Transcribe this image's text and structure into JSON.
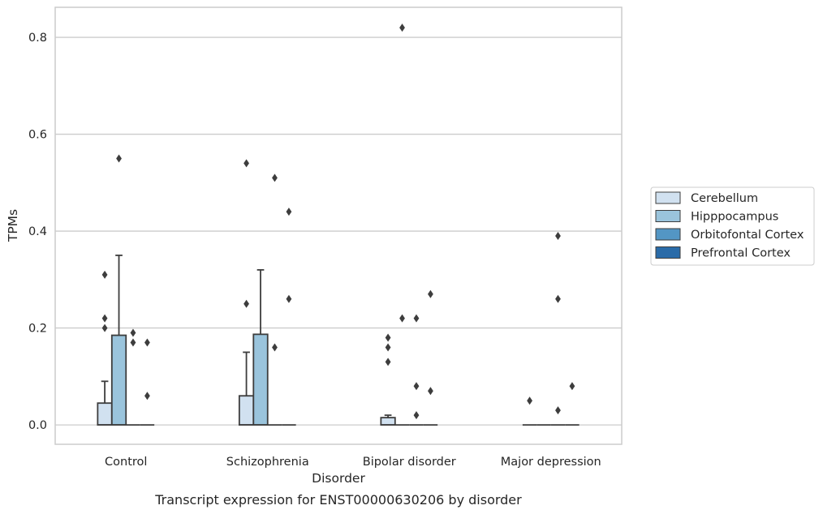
{
  "caption": "Transcript expression for ENST00000630206 by disorder",
  "chart_data": {
    "type": "box",
    "title": "",
    "xlabel": "Disorder",
    "ylabel": "TPMs",
    "ylim": [
      -0.04,
      0.862
    ],
    "yticks": [
      0.0,
      0.2,
      0.4,
      0.6,
      0.8
    ],
    "ytick_labels": [
      "0.0",
      "0.2",
      "0.4",
      "0.6",
      "0.8"
    ],
    "grid": "horizontal",
    "legend_position": "right",
    "categories": [
      "Control",
      "Schizophrenia",
      "Bipolar disorder",
      "Major depression"
    ],
    "series": [
      {
        "name": "Cerebellum",
        "color": "#d1e1f0",
        "boxes": [
          {
            "q1": 0.0,
            "median": 0.0,
            "q3": 0.045,
            "whisker_low": 0.0,
            "whisker_high": 0.09,
            "outliers": [
              0.2,
              0.22,
              0.31
            ]
          },
          {
            "q1": 0.0,
            "median": 0.0,
            "q3": 0.06,
            "whisker_low": 0.0,
            "whisker_high": 0.15,
            "outliers": [
              0.25,
              0.54
            ]
          },
          {
            "q1": 0.0,
            "median": 0.0,
            "q3": 0.015,
            "whisker_low": 0.0,
            "whisker_high": 0.02,
            "outliers": [
              0.13,
              0.16,
              0.18
            ]
          },
          {
            "q1": 0.0,
            "median": 0.0,
            "q3": 0.0,
            "whisker_low": 0.0,
            "whisker_high": 0.0,
            "outliers": [
              0.05
            ]
          }
        ]
      },
      {
        "name": "Hipppocampus",
        "color": "#9ac4dc",
        "boxes": [
          {
            "q1": 0.0,
            "median": 0.0,
            "q3": 0.185,
            "whisker_low": 0.0,
            "whisker_high": 0.35,
            "outliers": [
              0.55
            ]
          },
          {
            "q1": 0.0,
            "median": 0.0,
            "q3": 0.187,
            "whisker_low": 0.0,
            "whisker_high": 0.32,
            "outliers": []
          },
          {
            "q1": 0.0,
            "median": 0.0,
            "q3": 0.0,
            "whisker_low": 0.0,
            "whisker_high": 0.0,
            "outliers": [
              0.22,
              0.82
            ]
          },
          {
            "q1": 0.0,
            "median": 0.0,
            "q3": 0.0,
            "whisker_low": 0.0,
            "whisker_high": 0.0,
            "outliers": []
          }
        ]
      },
      {
        "name": "Orbitofontal Cortex",
        "color": "#5396c4",
        "boxes": [
          {
            "q1": 0.0,
            "median": 0.0,
            "q3": 0.0,
            "whisker_low": 0.0,
            "whisker_high": 0.0,
            "outliers": [
              0.17,
              0.19
            ]
          },
          {
            "q1": 0.0,
            "median": 0.0,
            "q3": 0.0,
            "whisker_low": 0.0,
            "whisker_high": 0.0,
            "outliers": [
              0.16,
              0.51
            ]
          },
          {
            "q1": 0.0,
            "median": 0.0,
            "q3": 0.0,
            "whisker_low": 0.0,
            "whisker_high": 0.0,
            "outliers": [
              0.02,
              0.08,
              0.22
            ]
          },
          {
            "q1": 0.0,
            "median": 0.0,
            "q3": 0.0,
            "whisker_low": 0.0,
            "whisker_high": 0.0,
            "outliers": [
              0.03,
              0.26,
              0.39
            ]
          }
        ]
      },
      {
        "name": "Prefrontal Cortex",
        "color": "#2a6ba8",
        "boxes": [
          {
            "q1": 0.0,
            "median": 0.0,
            "q3": 0.0,
            "whisker_low": 0.0,
            "whisker_high": 0.0,
            "outliers": [
              0.06,
              0.17
            ]
          },
          {
            "q1": 0.0,
            "median": 0.0,
            "q3": 0.0,
            "whisker_low": 0.0,
            "whisker_high": 0.0,
            "outliers": [
              0.26,
              0.44
            ]
          },
          {
            "q1": 0.0,
            "median": 0.0,
            "q3": 0.0,
            "whisker_low": 0.0,
            "whisker_high": 0.0,
            "outliers": [
              0.07,
              0.27
            ]
          },
          {
            "q1": 0.0,
            "median": 0.0,
            "q3": 0.0,
            "whisker_low": 0.0,
            "whisker_high": 0.0,
            "outliers": [
              0.08
            ]
          }
        ]
      }
    ]
  }
}
